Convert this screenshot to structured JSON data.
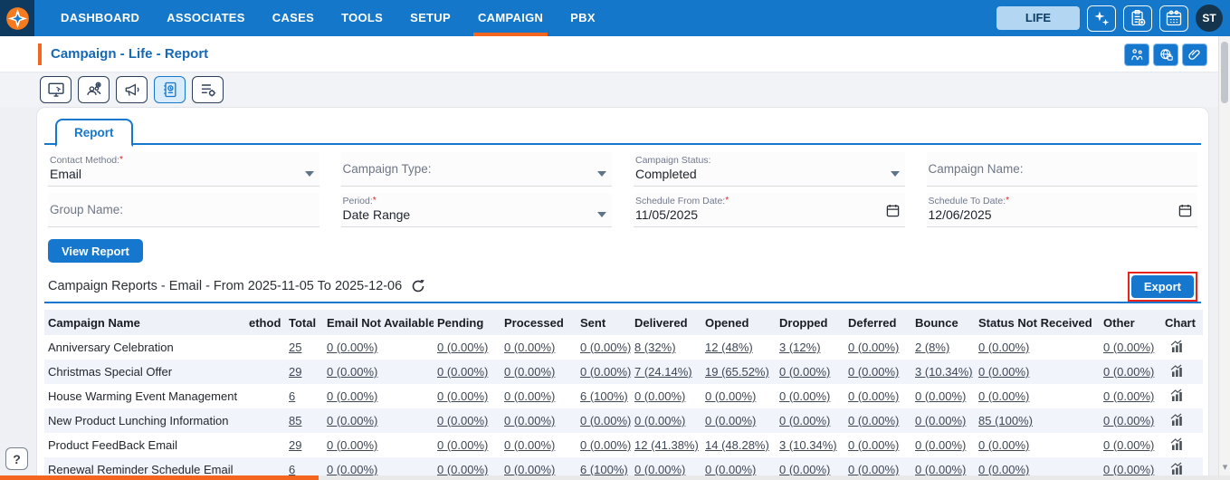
{
  "nav": {
    "items": [
      {
        "label": "DASHBOARD"
      },
      {
        "label": "ASSOCIATES"
      },
      {
        "label": "CASES"
      },
      {
        "label": "TOOLS"
      },
      {
        "label": "SETUP"
      },
      {
        "label": "CAMPAIGN"
      },
      {
        "label": "PBX"
      }
    ],
    "active_item": "CAMPAIGN",
    "life_button_label": "LIFE",
    "icon_buttons": [
      "sparkles-icon",
      "clipboard-add-icon",
      "calendar-icon"
    ],
    "avatar_text": "ST"
  },
  "header": {
    "title": "Campaign - Life - Report",
    "icon_buttons": [
      "people-activity-icon",
      "globe-lock-icon",
      "attachment-icon"
    ]
  },
  "toolbar": {
    "icons": [
      "monitor-icon",
      "audience-icon",
      "megaphone-icon",
      "report-book-icon",
      "list-settings-icon"
    ],
    "active_icon": "report-book-icon"
  },
  "tabs": {
    "report_label": "Report"
  },
  "filters": {
    "fields": [
      {
        "label": "Contact Method:",
        "required_mark": "*",
        "value": "Email",
        "control": "select"
      },
      {
        "label": "Campaign Type:",
        "required_mark": "",
        "value": "",
        "control": "select"
      },
      {
        "label": "Campaign Status:",
        "required_mark": "",
        "value": "Completed",
        "control": "select"
      },
      {
        "label": "Campaign Name:",
        "required_mark": "",
        "value": "",
        "control": "text"
      },
      {
        "label": "Group Name:",
        "required_mark": "",
        "value": "",
        "control": "text"
      },
      {
        "label": "Period:",
        "required_mark": "*",
        "value": "Date Range",
        "control": "select"
      },
      {
        "label": "Schedule From Date:",
        "required_mark": "*",
        "value": "11/05/2025",
        "control": "date"
      },
      {
        "label": "Schedule To Date:",
        "required_mark": "*",
        "value": "12/06/2025",
        "control": "date"
      }
    ],
    "view_report_label": "View Report"
  },
  "report": {
    "section_title": "Campaign Reports - Email - From 2025-11-05 To 2025-12-06",
    "export_label": "Export"
  },
  "table": {
    "columns": [
      "Campaign Name",
      "ethod",
      "Total",
      "Email Not Available",
      "Pending",
      "Processed",
      "Sent",
      "Delivered",
      "Opened",
      "Dropped",
      "Deferred",
      "Bounce",
      "Status Not Received",
      "Other",
      "Chart"
    ],
    "rows": [
      {
        "name": "Anniversary Celebration",
        "method": "",
        "total": "25",
        "values": [
          "0 (0.00%)",
          "0 (0.00%)",
          "0 (0.00%)",
          "0 (0.00%)",
          "8 (32%)",
          "12 (48%)",
          "3 (12%)",
          "0 (0.00%)",
          "2 (8%)",
          "0 (0.00%)",
          "0 (0.00%)"
        ]
      },
      {
        "name": "Christmas Special Offer",
        "method": "",
        "total": "29",
        "values": [
          "0 (0.00%)",
          "0 (0.00%)",
          "0 (0.00%)",
          "0 (0.00%)",
          "7 (24.14%)",
          "19 (65.52%)",
          "0 (0.00%)",
          "0 (0.00%)",
          "3 (10.34%)",
          "0 (0.00%)",
          "0 (0.00%)"
        ]
      },
      {
        "name": "House Warming Event Management",
        "method": "",
        "total": "6",
        "values": [
          "0 (0.00%)",
          "0 (0.00%)",
          "0 (0.00%)",
          "6 (100%)",
          "0 (0.00%)",
          "0 (0.00%)",
          "0 (0.00%)",
          "0 (0.00%)",
          "0 (0.00%)",
          "0 (0.00%)",
          "0 (0.00%)"
        ]
      },
      {
        "name": "New Product Lunching Information",
        "method": "",
        "total": "85",
        "values": [
          "0 (0.00%)",
          "0 (0.00%)",
          "0 (0.00%)",
          "0 (0.00%)",
          "0 (0.00%)",
          "0 (0.00%)",
          "0 (0.00%)",
          "0 (0.00%)",
          "0 (0.00%)",
          "85 (100%)",
          "0 (0.00%)"
        ]
      },
      {
        "name": "Product FeedBack Email",
        "method": "",
        "total": "29",
        "values": [
          "0 (0.00%)",
          "0 (0.00%)",
          "0 (0.00%)",
          "0 (0.00%)",
          "12 (41.38%)",
          "14 (48.28%)",
          "3 (10.34%)",
          "0 (0.00%)",
          "0 (0.00%)",
          "0 (0.00%)",
          "0 (0.00%)"
        ]
      },
      {
        "name": "Renewal Reminder Schedule Email",
        "method": "",
        "total": "6",
        "values": [
          "0 (0.00%)",
          "0 (0.00%)",
          "0 (0.00%)",
          "6 (100%)",
          "0 (0.00%)",
          "0 (0.00%)",
          "0 (0.00%)",
          "0 (0.00%)",
          "0 (0.00%)",
          "0 (0.00%)",
          "0 (0.00%)"
        ]
      }
    ]
  },
  "help_button_label": "?",
  "colors": {
    "nav_blue": "#1477C9",
    "accent_orange": "#F4661F",
    "primary_button_blue": "#1577CD",
    "title_blue": "#1568B4",
    "highlight_red": "#E8231A",
    "table_header_bg": "#EEF1F8",
    "table_alt_row_bg": "#F1F5FB",
    "table_link_color": "#3F4754",
    "life_button_bg": "#B3D7F2"
  }
}
